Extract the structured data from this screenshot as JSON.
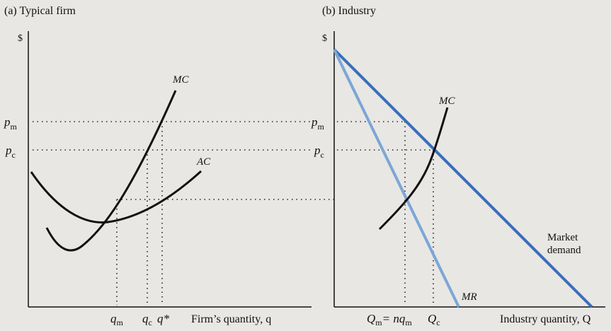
{
  "panel_a": {
    "title": "(a) Typical firm",
    "y_axis": "$",
    "x_axis": "Firm’s quantity, q",
    "price_labels": {
      "p": "p",
      "m": "m",
      "c": "c"
    },
    "curve_labels": {
      "mc": "MC",
      "ac": "AC"
    },
    "tick_labels": {
      "q": "q",
      "m": "m",
      "c": "c",
      "qstar": "q*"
    }
  },
  "panel_b": {
    "title": "(b) Industry",
    "y_axis": "$",
    "x_axis": "Industry quantity, Q",
    "price_labels": {
      "p": "p",
      "m": "m",
      "c": "c"
    },
    "curve_labels": {
      "mc": "MC",
      "mr": "MR",
      "demand_line1": "Market",
      "demand_line2": "demand"
    },
    "tick_labels": {
      "Qm_Q": "Q",
      "m": "m",
      "eq": "= nq",
      "Qc_Q": "Q",
      "c": "c"
    }
  },
  "colors": {
    "axis": "#111111",
    "demand": "#3a6fb8",
    "mr": "#7da6d6",
    "mc": "#111111"
  }
}
